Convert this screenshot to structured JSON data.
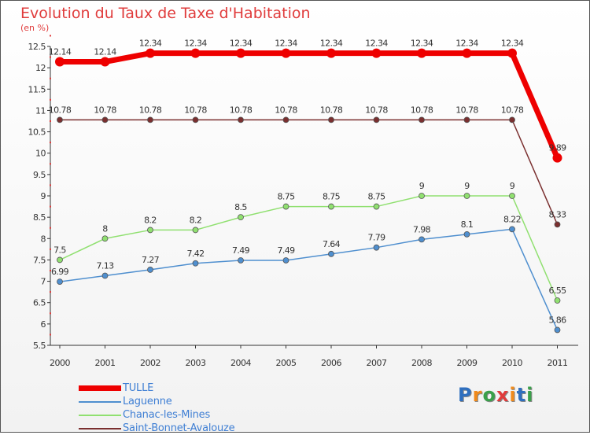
{
  "title": "Evolution du Taux de Taxe d'Habitation",
  "subtitle": "(en %)",
  "logo": {
    "text": "Proxiti",
    "letter_colors": [
      "#2f6fbf",
      "#f08a1c",
      "#3aa04a",
      "#e03c3c",
      "#f08a1c",
      "#2f6fbf",
      "#3aa04a"
    ]
  },
  "chart_data": {
    "type": "line",
    "categories": [
      "2000",
      "2001",
      "2002",
      "2003",
      "2004",
      "2005",
      "2006",
      "2007",
      "2008",
      "2009",
      "2010",
      "2011"
    ],
    "ylim": [
      5.5,
      12.5
    ],
    "yticks": [
      "5.5",
      "6",
      "6.5",
      "7",
      "7.5",
      "8",
      "8.5",
      "9",
      "9.5",
      "10",
      "10.5",
      "11",
      "11.5",
      "12",
      "12.5"
    ],
    "legend_position": "bottom-left",
    "grid": false,
    "series": [
      {
        "name": "TULLE",
        "color": "#ee0000",
        "values": [
          12.14,
          12.14,
          12.34,
          12.34,
          12.34,
          12.34,
          12.34,
          12.34,
          12.34,
          12.34,
          12.34,
          9.89
        ],
        "labels": [
          "12.14",
          "12.14",
          "12.34",
          "12.34",
          "12.34",
          "12.34",
          "12.34",
          "12.34",
          "12.34",
          "12.34",
          "12.34",
          "9.89"
        ]
      },
      {
        "name": "Laguenne",
        "color": "#4f8fcf",
        "values": [
          6.99,
          7.13,
          7.27,
          7.42,
          7.49,
          7.49,
          7.64,
          7.79,
          7.98,
          8.1,
          8.22,
          5.86
        ],
        "labels": [
          "6.99",
          "7.13",
          "7.27",
          "7.42",
          "7.49",
          "7.49",
          "7.64",
          "7.79",
          "7.98",
          "8.1",
          "8.22",
          "5.86"
        ]
      },
      {
        "name": "Chanac-les-Mines",
        "color": "#90e070",
        "values": [
          7.5,
          8,
          8.2,
          8.2,
          8.5,
          8.75,
          8.75,
          8.75,
          9,
          9,
          9,
          6.55
        ],
        "labels": [
          "7.5",
          "8",
          "8.2",
          "8.2",
          "8.5",
          "8.75",
          "8.75",
          "8.75",
          "9",
          "9",
          "9",
          "6.55"
        ]
      },
      {
        "name": "Saint-Bonnet-Avalouze",
        "color": "#7a2f2f",
        "values": [
          10.78,
          10.78,
          10.78,
          10.78,
          10.78,
          10.78,
          10.78,
          10.78,
          10.78,
          10.78,
          10.78,
          8.33
        ],
        "labels": [
          "10.78",
          "10.78",
          "10.78",
          "10.78",
          "10.78",
          "10.78",
          "10.78",
          "10.78",
          "10.78",
          "10.78",
          "10.78",
          "8.33"
        ]
      }
    ]
  }
}
